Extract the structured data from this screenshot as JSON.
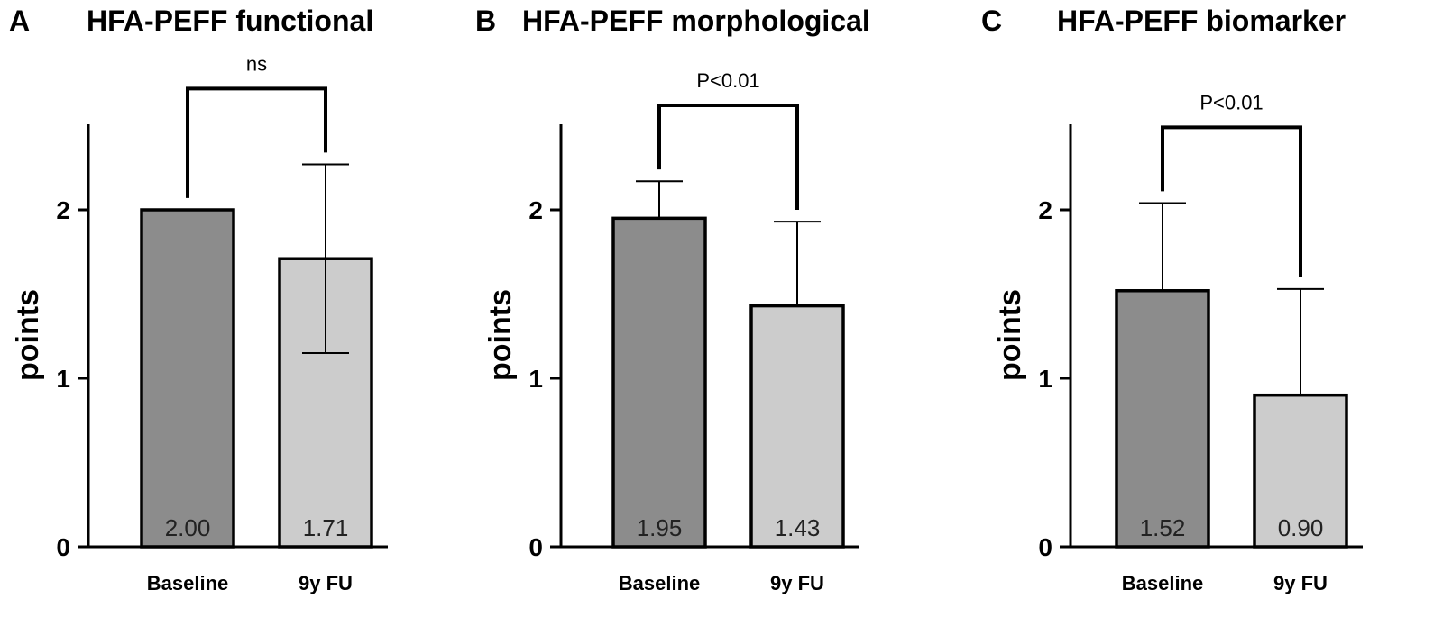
{
  "chart_data": [
    {
      "type": "bar",
      "panel_letter": "A",
      "title": "HFA-PEFF functional",
      "ylabel": "points",
      "yticks": [
        "0",
        "1",
        "2"
      ],
      "ylim": [
        0,
        2.5
      ],
      "categories": [
        "Baseline",
        "9y FU"
      ],
      "values": [
        2.0,
        1.71
      ],
      "value_labels": [
        "2.00",
        "1.71"
      ],
      "error_upper": [
        null,
        0.56
      ],
      "error_lower": [
        null,
        0.56
      ],
      "significance": {
        "label": "ns",
        "between": [
          0,
          1
        ]
      },
      "colors": [
        "#8c8c8c",
        "#cccccc"
      ]
    },
    {
      "type": "bar",
      "panel_letter": "B",
      "title": "HFA-PEFF morphological",
      "ylabel": "points",
      "yticks": [
        "0",
        "1",
        "2"
      ],
      "ylim": [
        0,
        2.5
      ],
      "categories": [
        "Baseline",
        "9y FU"
      ],
      "values": [
        1.95,
        1.43
      ],
      "value_labels": [
        "1.95",
        "1.43"
      ],
      "error_upper": [
        0.22,
        0.5
      ],
      "error_lower": [
        null,
        null
      ],
      "significance": {
        "label": "P<0.01",
        "between": [
          0,
          1
        ]
      },
      "colors": [
        "#8c8c8c",
        "#cccccc"
      ]
    },
    {
      "type": "bar",
      "panel_letter": "C",
      "title": "HFA-PEFF biomarker",
      "ylabel": "points",
      "yticks": [
        "0",
        "1",
        "2"
      ],
      "ylim": [
        0,
        2.5
      ],
      "categories": [
        "Baseline",
        "9y FU"
      ],
      "values": [
        1.52,
        0.9
      ],
      "value_labels": [
        "1.52",
        "0.90"
      ],
      "error_upper": [
        0.52,
        0.63
      ],
      "error_lower": [
        null,
        null
      ],
      "significance": {
        "label": "P<0.01",
        "between": [
          0,
          1
        ]
      },
      "colors": [
        "#8c8c8c",
        "#cccccc"
      ]
    }
  ]
}
